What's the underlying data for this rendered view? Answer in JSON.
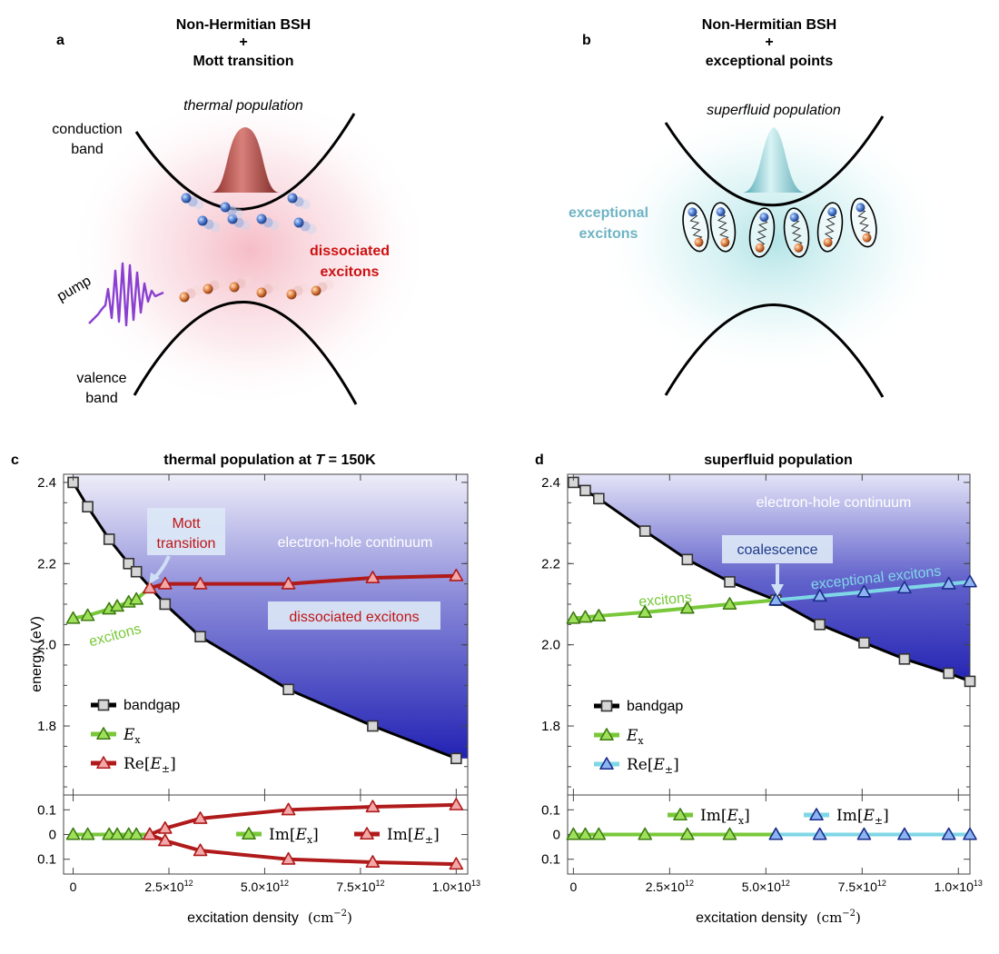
{
  "panel_a": {
    "letter": "a",
    "title_line1": "Non-Hermitian BSH",
    "title_plus": "+",
    "title_line2": "Mott transition",
    "population_label": "thermal population",
    "conduction_band": [
      "conduction",
      "band"
    ],
    "valence_band": [
      "valence",
      "band"
    ],
    "pump_label": "pump",
    "dissociated_label": [
      "dissociated",
      "excitons"
    ],
    "colors": {
      "population": "#a8423a",
      "dissociated": "#cc1111",
      "pump": "#8a3fd0"
    }
  },
  "panel_b": {
    "letter": "b",
    "title_line1": "Non-Hermitian BSH",
    "title_plus": "+",
    "title_line2": "exceptional points",
    "population_label": "superfluid population",
    "exceptional_label": [
      "exceptional",
      "excitons"
    ],
    "colors": {
      "population": "#7fc6cf",
      "exceptional": "#6fb4c4"
    }
  },
  "chart_data": [
    {
      "panel": "c",
      "type": "line",
      "title": "thermal population at T = 150K",
      "title_prefix": "thermal population at ",
      "title_var": "T",
      "title_suffix": " = 150K",
      "ylabel": "energy (eV)",
      "xlabel": "excitation density",
      "xlabel_units": "(cm",
      "xlabel_exp": "−2",
      "xlim": [
        -250000000000.0,
        10300000000000.0
      ],
      "ylim": [
        1.63,
        2.42
      ],
      "ylim_lower": [
        -0.16,
        0.16
      ],
      "x_ticks": [
        {
          "v": 0,
          "m": "0",
          "e": ""
        },
        {
          "v": 2500000000000.0,
          "m": "2.5×10",
          "e": "12"
        },
        {
          "v": 5000000000000.0,
          "m": "5.0×10",
          "e": "12"
        },
        {
          "v": 7500000000000.0,
          "m": "7.5×10",
          "e": "12"
        },
        {
          "v": 10000000000000.0,
          "m": "1.0×10",
          "e": "13"
        }
      ],
      "y_ticks": [
        "2.4",
        "2.2",
        "2.0",
        "1.8"
      ],
      "y_tick_values": [
        2.4,
        2.2,
        2.0,
        1.8
      ],
      "y_ticks_lower": [
        "0.1",
        "0",
        "0.1"
      ],
      "y_tick_lower_values": [
        0.1,
        0,
        -0.1
      ],
      "region_label": "electron-hole continuum",
      "annotations": [
        "Mott transition",
        "dissociated excitons",
        "excitons"
      ],
      "legend": [
        "bandgap",
        "E",
        "Re[E",
        "Im[E",
        "Im[E"
      ],
      "series": [
        {
          "name": "bandgap",
          "color": "#000000",
          "x": [
            0,
            380000000000.0,
            940000000000.0,
            1450000000000.0,
            1650000000000.0,
            2400000000000.0,
            3320000000000.0,
            5620000000000.0,
            7820000000000.0,
            10000000000000.0
          ],
          "y": [
            2.4,
            2.34,
            2.26,
            2.2,
            2.18,
            2.1,
            2.02,
            1.89,
            1.8,
            1.72
          ]
        },
        {
          "name": "E_x",
          "color": "#78c83a",
          "x": [
            0,
            380000000000.0,
            940000000000.0,
            1150000000000.0,
            1450000000000.0,
            1650000000000.0,
            2000000000000.0
          ],
          "y": [
            2.065,
            2.072,
            2.088,
            2.095,
            2.105,
            2.112,
            2.14
          ]
        },
        {
          "name": "Re[E±]",
          "color": "#b01a1a",
          "x": [
            2000000000000.0,
            2400000000000.0,
            3320000000000.0,
            5620000000000.0,
            7820000000000.0,
            10000000000000.0
          ],
          "y": [
            2.14,
            2.15,
            2.15,
            2.15,
            2.165,
            2.17
          ]
        },
        {
          "name": "Im[E_x]",
          "color": "#78c83a",
          "x": [
            0,
            380000000000.0,
            940000000000.0,
            1150000000000.0,
            1450000000000.0,
            1650000000000.0,
            2000000000000.0
          ],
          "y": [
            0,
            0,
            0,
            0,
            0,
            0,
            0
          ]
        },
        {
          "name": "Im[E±]+",
          "color": "#b01a1a",
          "x": [
            2000000000000.0,
            2400000000000.0,
            3320000000000.0,
            5620000000000.0,
            7820000000000.0,
            10000000000000.0
          ],
          "y": [
            0,
            0.025,
            0.065,
            0.1,
            0.112,
            0.12
          ]
        },
        {
          "name": "Im[E±]-",
          "color": "#b01a1a",
          "x": [
            2000000000000.0,
            2400000000000.0,
            3320000000000.0,
            5620000000000.0,
            7820000000000.0,
            10000000000000.0
          ],
          "y": [
            0,
            -0.025,
            -0.065,
            -0.1,
            -0.112,
            -0.12
          ]
        }
      ]
    },
    {
      "panel": "d",
      "type": "line",
      "title": "superfluid population",
      "ylabel": "",
      "xlabel": "excitation density",
      "xlabel_units": "(cm",
      "xlabel_exp": "−2",
      "xlim": [
        -150000000000.0,
        10300000000000.0
      ],
      "ylim": [
        1.63,
        2.42
      ],
      "ylim_lower": [
        -0.16,
        0.16
      ],
      "x_ticks": [
        {
          "v": 0,
          "m": "0",
          "e": ""
        },
        {
          "v": 2500000000000.0,
          "m": "2.5×10",
          "e": "12"
        },
        {
          "v": 5000000000000.0,
          "m": "5.0×10",
          "e": "12"
        },
        {
          "v": 7500000000000.0,
          "m": "7.5×10",
          "e": "12"
        },
        {
          "v": 10000000000000.0,
          "m": "1.0×10",
          "e": "13"
        }
      ],
      "y_ticks": [
        "2.4",
        "2.2",
        "2.0",
        "1.8"
      ],
      "y_tick_values": [
        2.4,
        2.2,
        2.0,
        1.8
      ],
      "y_ticks_lower": [
        "0.1",
        "0",
        "0.1"
      ],
      "y_tick_lower_values": [
        0.1,
        0,
        -0.1
      ],
      "region_label": "electron-hole continuum",
      "annotations": [
        "coalescence",
        "exceptional excitons",
        "excitons"
      ],
      "legend": [
        "bandgap",
        "E",
        "Re[E",
        "Im[E",
        "Im[E"
      ],
      "series": [
        {
          "name": "bandgap",
          "color": "#000000",
          "x": [
            0,
            310000000000.0,
            660000000000.0,
            1860000000000.0,
            2960000000000.0,
            4060000000000.0,
            5260000000000.0,
            6400000000000.0,
            7550000000000.0,
            8600000000000.0,
            9750000000000.0,
            10300000000000.0
          ],
          "y": [
            2.4,
            2.38,
            2.36,
            2.28,
            2.21,
            2.155,
            2.11,
            2.05,
            2.005,
            1.965,
            1.93,
            1.91
          ]
        },
        {
          "name": "E_x",
          "color": "#78c83a",
          "x": [
            0,
            310000000000.0,
            660000000000.0,
            1860000000000.0,
            2960000000000.0,
            4060000000000.0,
            5260000000000.0
          ],
          "y": [
            2.065,
            2.068,
            2.071,
            2.08,
            2.09,
            2.1,
            2.11
          ]
        },
        {
          "name": "Re[E±]",
          "color": "#7fd6e6",
          "x": [
            5260000000000.0,
            6400000000000.0,
            7550000000000.0,
            8600000000000.0,
            9750000000000.0,
            10300000000000.0
          ],
          "y": [
            2.11,
            2.12,
            2.13,
            2.14,
            2.15,
            2.155
          ]
        },
        {
          "name": "Im[E_x]",
          "color": "#78c83a",
          "x": [
            0,
            310000000000.0,
            660000000000.0,
            1860000000000.0,
            2960000000000.0,
            4060000000000.0,
            5260000000000.0
          ],
          "y": [
            0,
            0,
            0,
            0,
            0,
            0,
            0
          ]
        },
        {
          "name": "Im[E±]",
          "color": "#7fd6e6",
          "x": [
            5260000000000.0,
            6400000000000.0,
            7550000000000.0,
            8600000000000.0,
            9750000000000.0,
            10300000000000.0
          ],
          "y": [
            0,
            0,
            0,
            0,
            0,
            0
          ]
        }
      ]
    }
  ]
}
